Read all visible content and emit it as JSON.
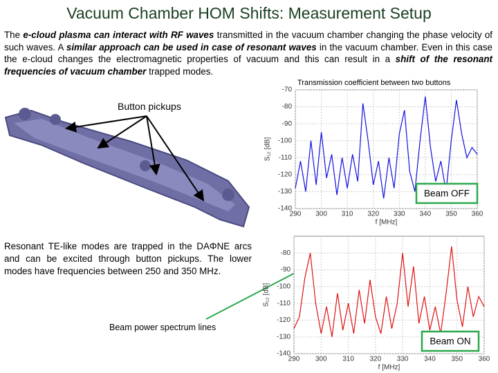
{
  "title": "Vacuum Chamber HOM Shifts: Measurement Setup",
  "intro": [
    {
      "text": "The ",
      "emphasis": false
    },
    {
      "text": "e-cloud plasma can interact with RF waves",
      "emphasis": true
    },
    {
      "text": " transmitted in the vacuum chamber changing the phase velocity of such waves. A ",
      "emphasis": false
    },
    {
      "text": "similar approach can be used in case of resonant waves",
      "emphasis": true
    },
    {
      "text": " in the vacuum chamber. Even in this case the e-cloud changes the electromagnetic properties of vacuum and this can result in a ",
      "emphasis": false
    },
    {
      "text": "shift of the resonant frequencies of vacuum chamber",
      "emphasis": true
    },
    {
      "text": " trapped modes.",
      "emphasis": false
    }
  ],
  "plot_caption": "Transmission coefficient between two buttons",
  "button_pickups": "Button pickups",
  "description": "Resonant TE-like modes are trapped in the DAΦNE arcs and can be excited through button pickups. The lower modes have frequencies between 250 and 350 MHz.",
  "spectrum_lines": "Beam power spectrum lines",
  "plots": [
    {
      "type": "line",
      "label": "Beam OFF",
      "color": "#1010e0",
      "xlabel": "f [MHz]",
      "ylabel": "S₁₂ [dB]",
      "xlim": [
        290,
        360
      ],
      "ylim": [
        -140,
        -70
      ],
      "xticks": [
        290,
        300,
        310,
        320,
        330,
        340,
        350,
        360
      ],
      "yticks": [
        -70,
        -80,
        -90,
        -100,
        -110,
        -120,
        -130,
        -140
      ],
      "grid": true,
      "x": [
        290,
        292,
        294,
        296,
        298,
        300,
        302,
        304,
        306,
        308,
        310,
        312,
        314,
        316,
        318,
        320,
        322,
        324,
        326,
        328,
        330,
        332,
        334,
        336,
        338,
        340,
        342,
        344,
        346,
        348,
        350,
        352,
        354,
        356,
        358,
        360
      ],
      "values": [
        -128,
        -112,
        -130,
        -100,
        -126,
        -95,
        -122,
        -108,
        -132,
        -110,
        -128,
        -108,
        -124,
        -78,
        -100,
        -126,
        -112,
        -134,
        -110,
        -128,
        -96,
        -82,
        -118,
        -130,
        -100,
        -74,
        -104,
        -124,
        -112,
        -130,
        -100,
        -76,
        -96,
        -110,
        -104,
        -108
      ]
    },
    {
      "type": "line",
      "label": "Beam ON",
      "color": "#e01010",
      "xlabel": "f [MHz]",
      "ylabel": "S₁₂ [dB]",
      "xlim": [
        290,
        360
      ],
      "ylim": [
        -140,
        -70
      ],
      "xticks": [
        290,
        300,
        310,
        320,
        330,
        340,
        350,
        360
      ],
      "yticks": [
        -80,
        -90,
        -100,
        -110,
        -120,
        -130,
        -140
      ],
      "grid": true,
      "x": [
        290,
        292,
        294,
        296,
        298,
        300,
        302,
        304,
        306,
        308,
        310,
        312,
        314,
        316,
        318,
        320,
        322,
        324,
        326,
        328,
        330,
        332,
        334,
        336,
        338,
        340,
        342,
        344,
        346,
        348,
        350,
        352,
        354,
        356,
        358,
        360
      ],
      "values": [
        -125,
        -118,
        -95,
        -80,
        -110,
        -128,
        -112,
        -130,
        -104,
        -126,
        -110,
        -128,
        -102,
        -122,
        -96,
        -118,
        -128,
        -106,
        -125,
        -110,
        -80,
        -112,
        -88,
        -122,
        -106,
        -126,
        -112,
        -128,
        -104,
        -76,
        -108,
        -124,
        -100,
        -118,
        -106,
        -112
      ]
    }
  ]
}
